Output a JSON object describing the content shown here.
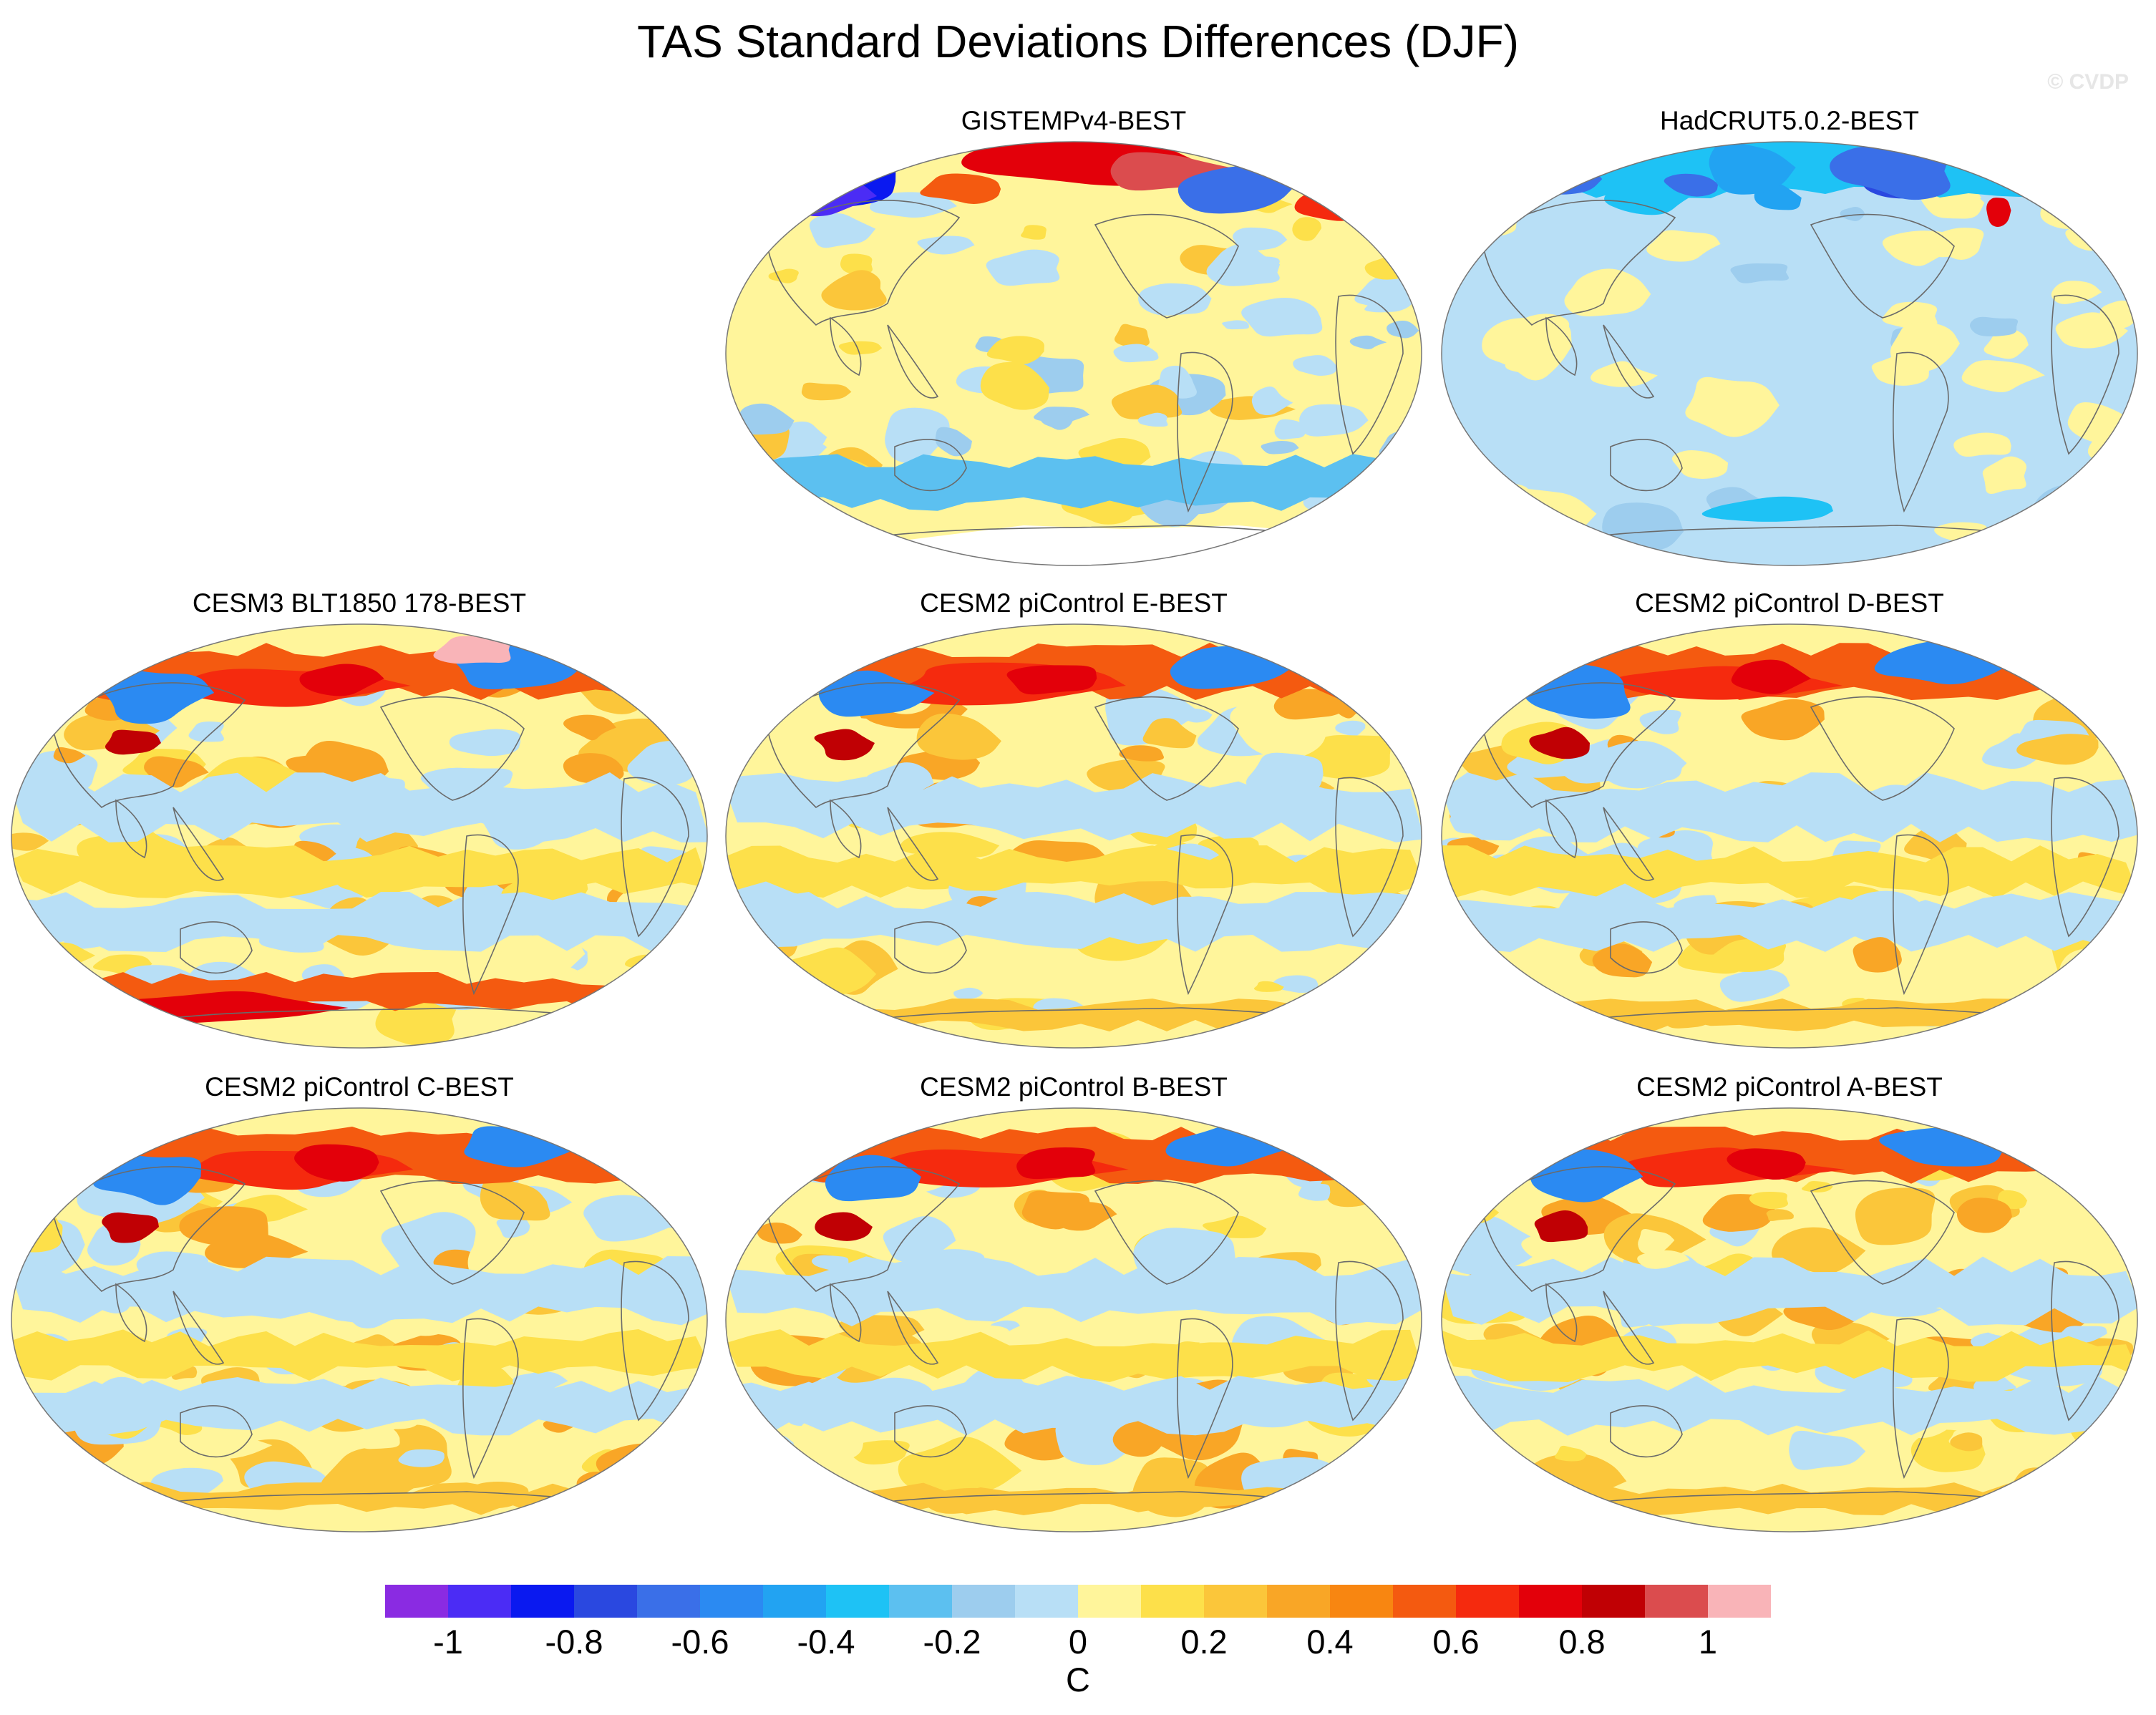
{
  "title": "TAS Standard Deviations Differences (DJF)",
  "watermark": "© CVDP",
  "panels": [
    {
      "title": "GISTEMPv4-BEST",
      "style": "obs_gistemp"
    },
    {
      "title": "HadCRUT5.0.2-BEST",
      "style": "obs_hadcrut"
    },
    {
      "title": "CESM3 BLT1850 178-BEST",
      "style": "model_hot"
    },
    {
      "title": "CESM2 piControl E-BEST",
      "style": "model"
    },
    {
      "title": "CESM2 piControl D-BEST",
      "style": "model"
    },
    {
      "title": "CESM2 piControl C-BEST",
      "style": "model"
    },
    {
      "title": "CESM2 piControl B-BEST",
      "style": "model"
    },
    {
      "title": "CESM2 piControl A-BEST",
      "style": "model"
    }
  ],
  "colorbar": {
    "colors": [
      "#8a2be2",
      "#4b2cf5",
      "#0a19f0",
      "#2a48e0",
      "#3a6fe8",
      "#2b8af2",
      "#22a3f2",
      "#1ec2f5",
      "#5cc0f0",
      "#9dcdee",
      "#b8dff6",
      "#fff59b",
      "#fde04a",
      "#fbc63a",
      "#f9a626",
      "#f88611",
      "#f45a10",
      "#f52a0e",
      "#e3000a",
      "#c00004",
      "#db4c4e",
      "#f9b4b8"
    ],
    "tick_labels": [
      "-1",
      "-0.8",
      "-0.6",
      "-0.4",
      "-0.2",
      "0",
      "0.2",
      "0.4",
      "0.6",
      "0.8",
      "1"
    ],
    "units": "C"
  }
}
